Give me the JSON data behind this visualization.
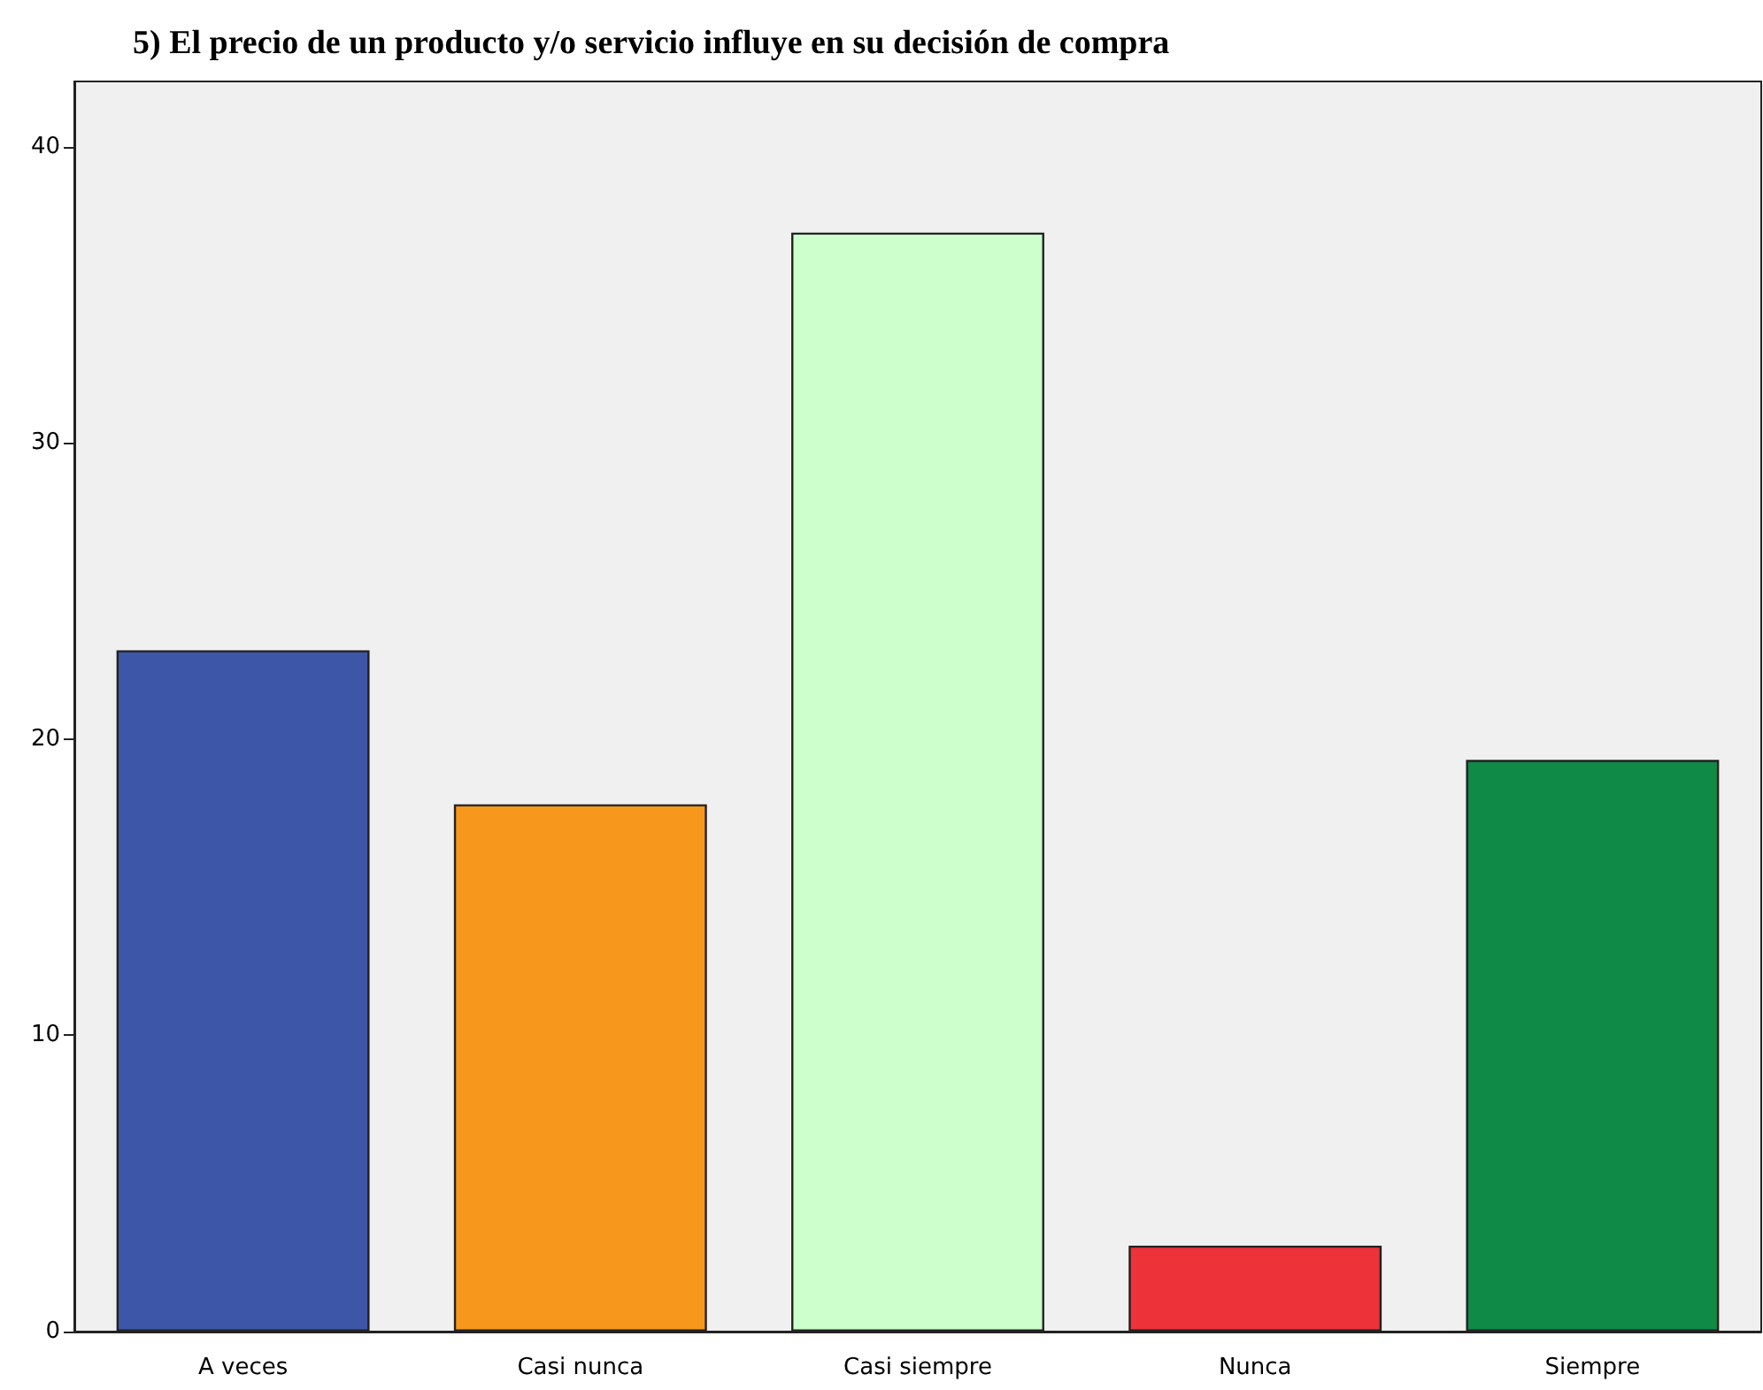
{
  "chart_data": {
    "type": "bar",
    "title": "5) El precio de un producto y/o servicio influye en su decisión de compra",
    "categories": [
      "A veces",
      "Casi nunca",
      "Casi siempre",
      "Nunca",
      "Siempre"
    ],
    "values": [
      23,
      17.8,
      37.1,
      2.9,
      19.3
    ],
    "colors": [
      "#3d56a7",
      "#f7981d",
      "#ccffcc",
      "#ed323a",
      "#0f8a47"
    ],
    "ylim": [
      0,
      42.2
    ],
    "yticks": [
      0,
      10,
      20,
      30,
      40
    ],
    "grid": false
  }
}
